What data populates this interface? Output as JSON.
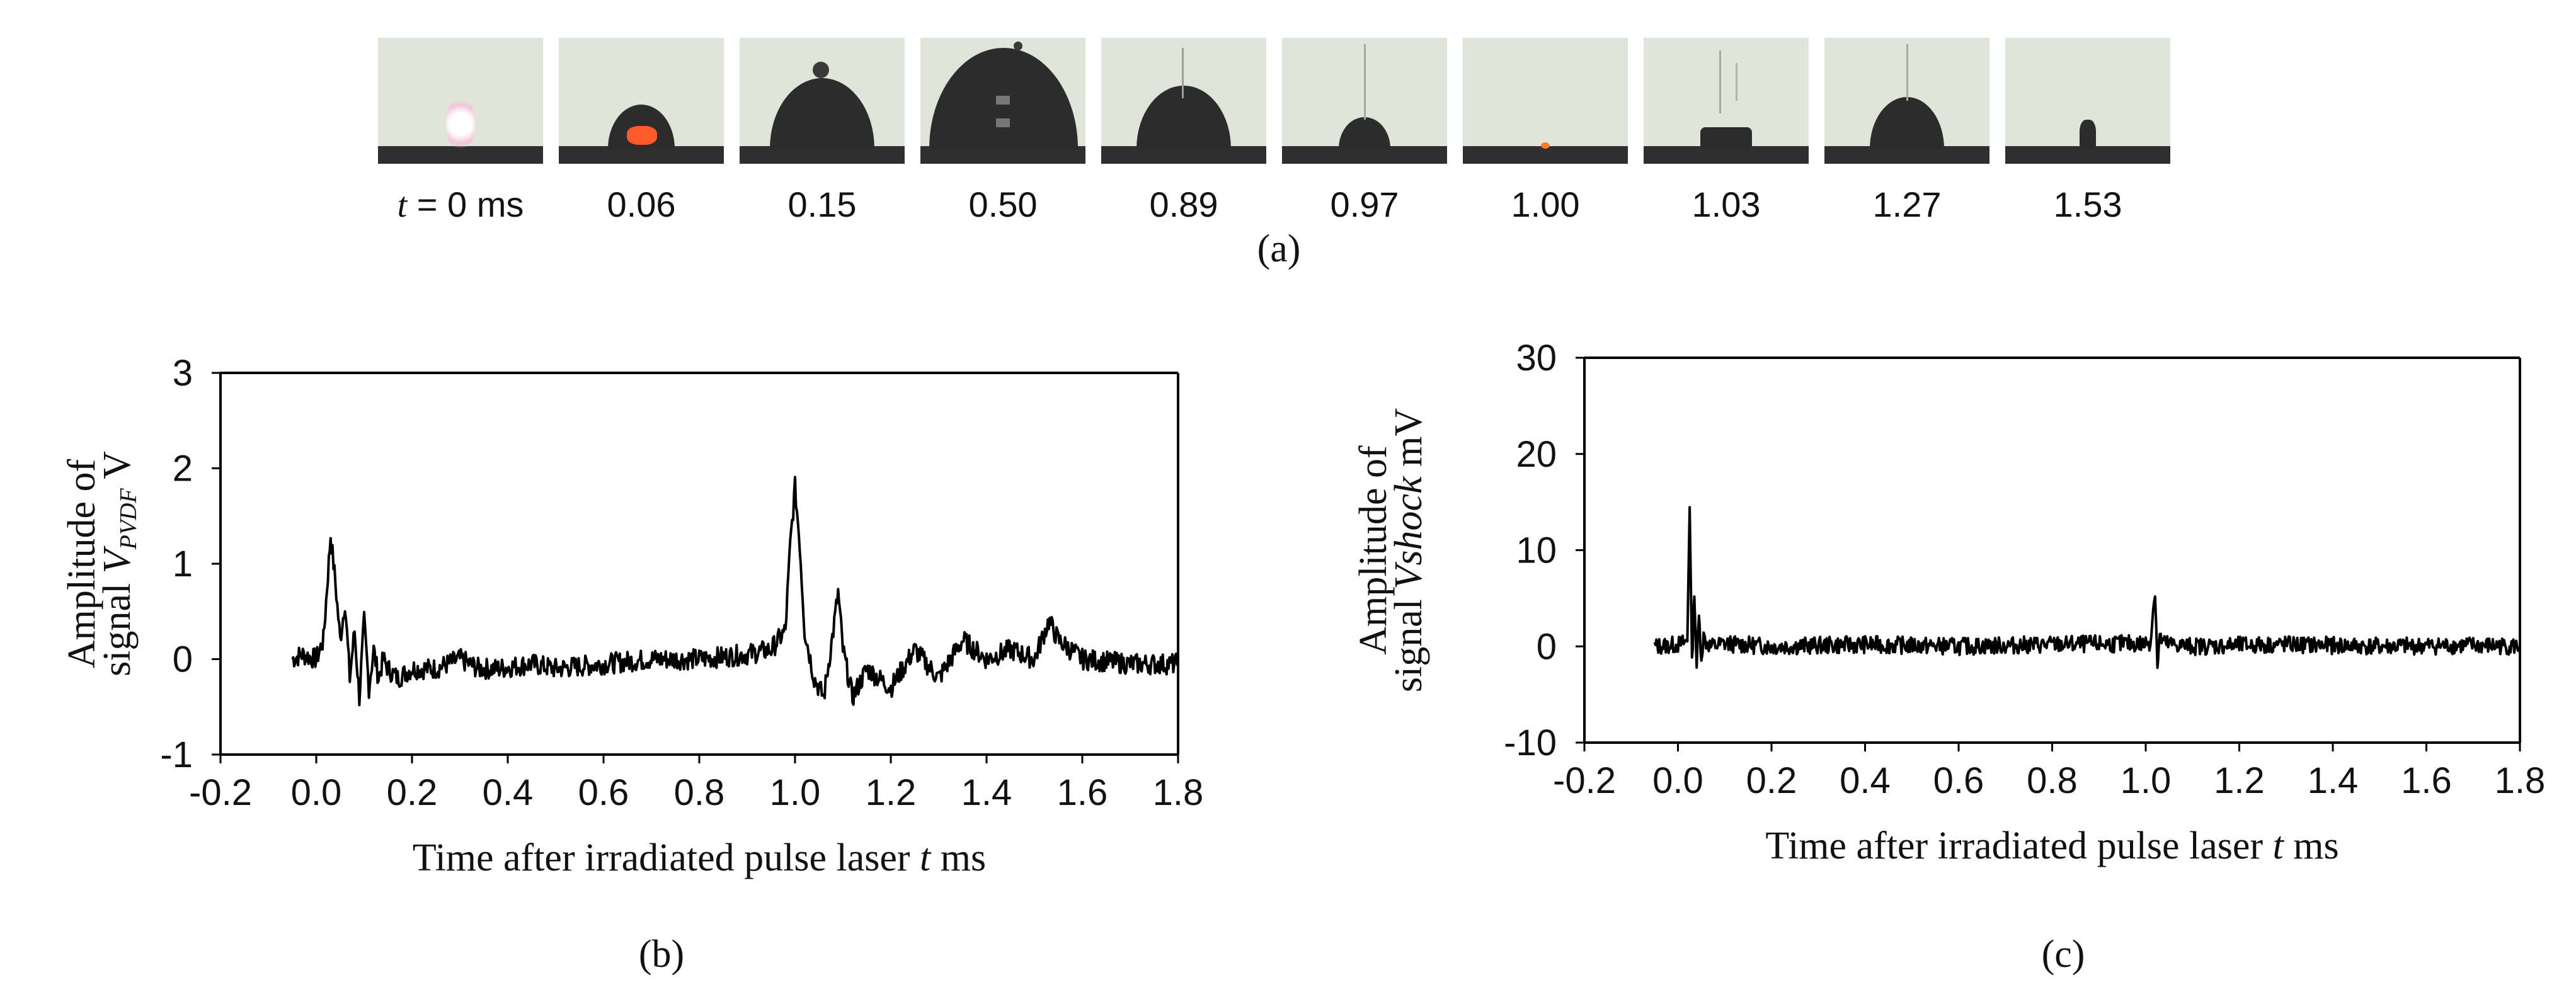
{
  "panel_a": {
    "caption": "(a)",
    "frames": [
      {
        "label": "t = 0 ms",
        "label_italic": "t",
        "label_rest": " = 0 ms"
      },
      {
        "label": "0.06"
      },
      {
        "label": "0.15"
      },
      {
        "label": "0.50"
      },
      {
        "label": "0.89"
      },
      {
        "label": "0.97"
      },
      {
        "label": "1.00"
      },
      {
        "label": "1.03"
      },
      {
        "label": "1.27"
      },
      {
        "label": "1.53"
      }
    ]
  },
  "chart_data": [
    {
      "id": "b",
      "type": "line",
      "caption": "(b)",
      "title": "",
      "xlabel": "Time after irradiated pulse laser",
      "xlabel_var": "t",
      "xlabel_unit": "ms",
      "ylabel_line1": "Amplitude of",
      "ylabel_line2_prefix": "signal ",
      "ylabel_var": "V",
      "ylabel_sub": "PVDF",
      "ylabel_unit": " V",
      "xlim": [
        -0.2,
        1.8
      ],
      "ylim": [
        -1,
        3
      ],
      "xticks": [
        "-0.2",
        "0.0",
        "0.2",
        "0.4",
        "0.6",
        "0.8",
        "1.0",
        "1.2",
        "1.4",
        "1.6",
        "1.8"
      ],
      "yticks": [
        "-1",
        "0",
        "1",
        "2",
        "3"
      ],
      "xtick_values": [
        -0.2,
        0.0,
        0.2,
        0.4,
        0.6,
        0.8,
        1.0,
        1.2,
        1.4,
        1.6,
        1.8
      ],
      "ytick_values": [
        -1,
        0,
        1,
        2,
        3
      ],
      "series": [
        {
          "name": "V_PVDF",
          "x": [
            -0.05,
            -0.03,
            0.0,
            0.015,
            0.03,
            0.04,
            0.05,
            0.06,
            0.07,
            0.08,
            0.09,
            0.1,
            0.11,
            0.12,
            0.13,
            0.14,
            0.15,
            0.17,
            0.2,
            0.25,
            0.3,
            0.34,
            0.38,
            0.45,
            0.5,
            0.6,
            0.7,
            0.8,
            0.9,
            0.95,
            0.98,
            0.99,
            1.0,
            1.01,
            1.02,
            1.04,
            1.06,
            1.08,
            1.09,
            1.1,
            1.12,
            1.15,
            1.2,
            1.25,
            1.3,
            1.35,
            1.4,
            1.45,
            1.5,
            1.53,
            1.55,
            1.6,
            1.7,
            1.8
          ],
          "y": [
            0.0,
            0.05,
            0.0,
            0.2,
            1.3,
            0.8,
            0.2,
            0.6,
            -0.2,
            0.3,
            -0.4,
            0.4,
            -0.3,
            0.1,
            -0.2,
            0.0,
            -0.1,
            -0.2,
            -0.1,
            -0.1,
            0.0,
            -0.1,
            -0.1,
            -0.05,
            -0.1,
            -0.05,
            0.0,
            0.0,
            0.05,
            0.1,
            0.3,
            1.2,
            1.8,
            1.2,
            0.3,
            -0.2,
            -0.4,
            0.3,
            0.7,
            0.1,
            -0.4,
            -0.1,
            -0.3,
            0.1,
            -0.2,
            0.2,
            0.0,
            0.1,
            0.0,
            0.4,
            0.2,
            0.0,
            -0.05,
            -0.05
          ]
        }
      ]
    },
    {
      "id": "c",
      "type": "line",
      "caption": "(c)",
      "title": "",
      "xlabel": "Time after irradiated pulse laser",
      "xlabel_var": "t",
      "xlabel_unit": "ms",
      "ylabel_line1": "Amplitude of",
      "ylabel_line2_prefix": "signal ",
      "ylabel_var": "Vshock",
      "ylabel_sub": "",
      "ylabel_unit": " mV",
      "xlim": [
        -0.2,
        1.8
      ],
      "ylim": [
        -10,
        30
      ],
      "xticks": [
        "-0.2",
        "0.0",
        "0.2",
        "0.4",
        "0.6",
        "0.8",
        "1.0",
        "1.2",
        "1.4",
        "1.6",
        "1.8"
      ],
      "yticks": [
        "-10",
        "0",
        "10",
        "20",
        "30"
      ],
      "xtick_values": [
        -0.2,
        0.0,
        0.2,
        0.4,
        0.6,
        0.8,
        1.0,
        1.2,
        1.4,
        1.6,
        1.8
      ],
      "ytick_values": [
        -10,
        0,
        10,
        20,
        30
      ],
      "series": [
        {
          "name": "Vshock",
          "x": [
            -0.05,
            0.0,
            0.02,
            0.025,
            0.03,
            0.035,
            0.04,
            0.045,
            0.05,
            0.055,
            0.06,
            0.07,
            0.1,
            0.2,
            0.4,
            0.6,
            0.8,
            1.0,
            1.01,
            1.02,
            1.025,
            1.03,
            1.04,
            1.1,
            1.3,
            1.5,
            1.7,
            1.8
          ],
          "y": [
            0.0,
            0.2,
            0.5,
            15.0,
            -2.0,
            6.0,
            -2.0,
            3.0,
            -1.0,
            1.0,
            0.5,
            0.0,
            0.3,
            0.0,
            0.2,
            0.0,
            0.2,
            0.3,
            0.5,
            6.0,
            -2.0,
            1.0,
            0.3,
            0.0,
            0.2,
            0.0,
            0.1,
            0.0
          ]
        }
      ]
    }
  ]
}
